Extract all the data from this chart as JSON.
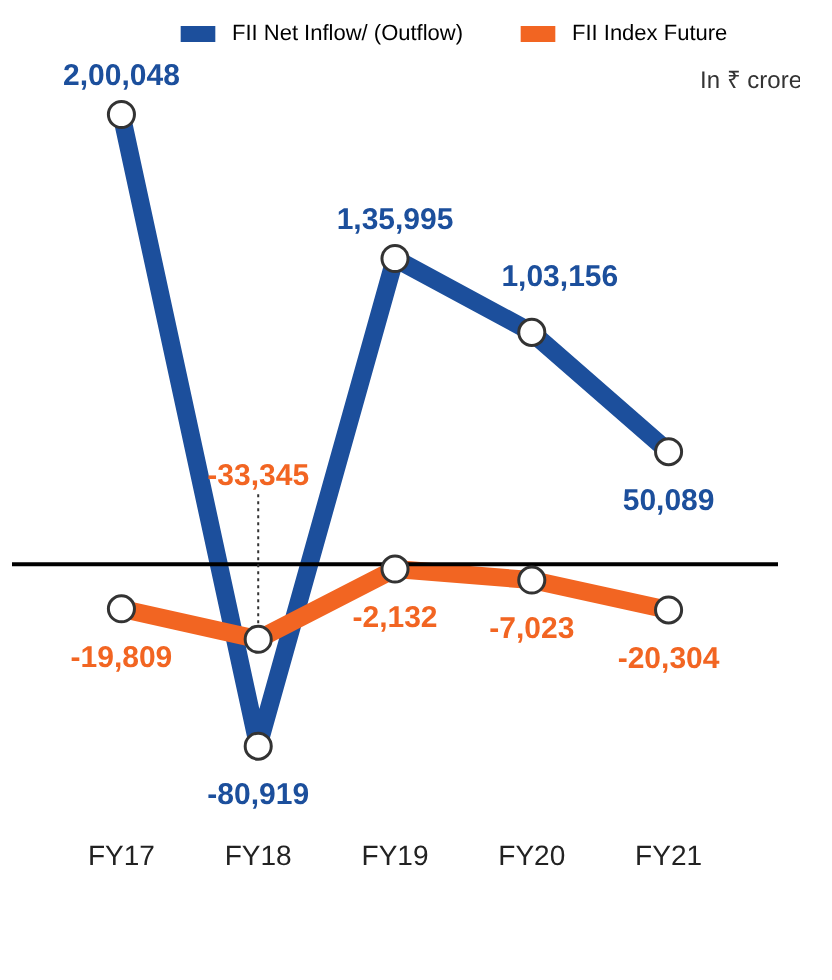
{
  "chart_data": {
    "type": "line",
    "categories": [
      "FY17",
      "FY18",
      "FY19",
      "FY20",
      "FY21"
    ],
    "series": [
      {
        "name": "FII Net Inflow/ (Outflow)",
        "color": "#1c4f9c",
        "values": [
          200048,
          -80919,
          135995,
          103156,
          50089
        ],
        "value_labels": [
          "2,00,048",
          "-80,919",
          "1,35,995",
          "1,03,156",
          "50,089"
        ]
      },
      {
        "name": "FII Index Future",
        "color": "#f26522",
        "values": [
          -19809,
          -33345,
          -2132,
          -7023,
          -20304
        ],
        "value_labels": [
          "-19,809",
          "-33,345",
          "-2,132",
          "-7,023",
          "-20,304"
        ]
      }
    ],
    "annotations": [
      "In ₹ crore"
    ],
    "ref_lines": [
      {
        "axis": "y",
        "value": 0,
        "color": "#000000"
      }
    ],
    "legend": "top right",
    "marker": "circle",
    "grid": false,
    "tick_labels": "x",
    "line_style": "solid"
  }
}
